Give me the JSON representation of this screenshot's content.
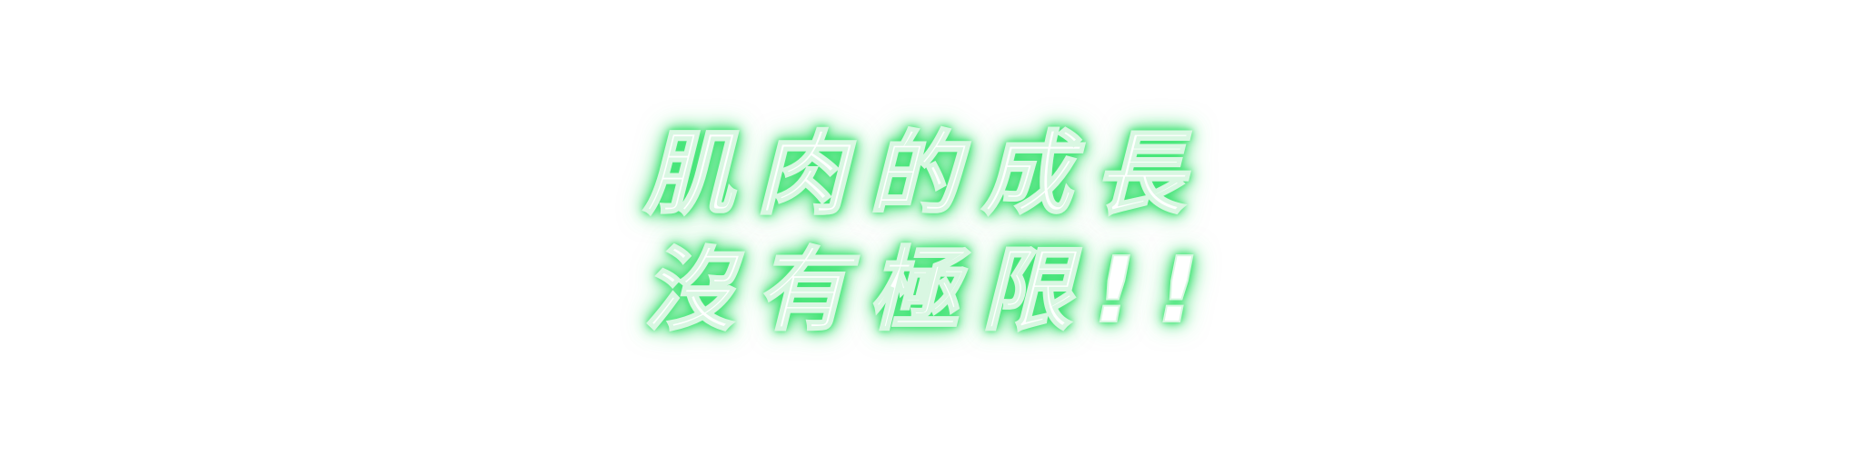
{
  "headline": {
    "line1": "肌肉的成長",
    "line2": "沒有極限!!"
  },
  "colors": {
    "background": "#ffffff",
    "text": "#ffffff",
    "glow": "#3fe874"
  }
}
